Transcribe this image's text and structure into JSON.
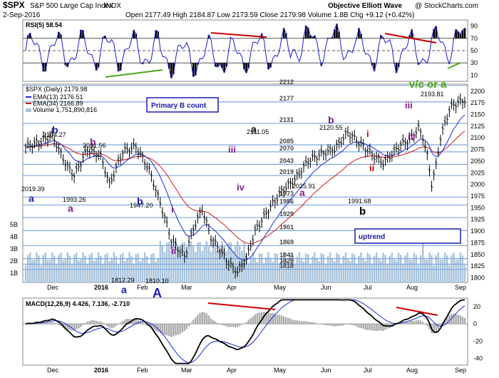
{
  "header": {
    "symbol": "$SPX",
    "name": "S&P 500 Large Cap Index",
    "exchange": "INDX",
    "date": "2-Sep-2016",
    "ohlc": "Open 2177.49  High 2184.87  Low 2173.59  Close 2179.98  Volume 1.8B  Chg +9.12 (+0.42%)",
    "source": "Objective Elliott Wave",
    "watermark": "@ StockCharts.com"
  },
  "x_axis": {
    "labels": [
      "Dec",
      "2016",
      "Feb",
      "Mar",
      "Apr",
      "May",
      "Jun",
      "Jul",
      "Aug",
      "Sep"
    ]
  },
  "rsi": {
    "label": "RSI(5) 58.54",
    "ticks": [
      "90",
      "70",
      "50",
      "30",
      "10"
    ],
    "levels": [
      70,
      50,
      30
    ]
  },
  "price": {
    "legend": {
      "symbol": "$SPX (Daily) 2179.98",
      "ema13": "EMA(13) 2176.51",
      "ema34": "EMA(34) 2166.89",
      "volume": "Volume 1,751,890,816"
    },
    "ticks": [
      "2200",
      "2175",
      "2150",
      "2125",
      "2100",
      "2075",
      "2050",
      "2025",
      "2000",
      "1975",
      "1950",
      "1925",
      "1900",
      "1875",
      "1850",
      "1825",
      "1800"
    ],
    "volume_ticks": [
      "5B",
      "4B",
      "3B",
      "2B",
      "1B"
    ],
    "fib_levels": [
      "2212",
      "2177",
      "2131",
      "2085",
      "2070",
      "2043",
      "2019",
      "1973",
      "1956",
      "1929",
      "1901",
      "1869",
      "1841",
      "1829",
      "1818"
    ],
    "price_labels": [
      "2104.27",
      "2081.56",
      "2019.39",
      "1993.26",
      "1947.20",
      "1812.29",
      "1810.10",
      "2111.05",
      "2025.91",
      "2120.55",
      "1991.68",
      "2193.81"
    ],
    "wave_labels": {
      "blue": [
        "b",
        "a",
        "b",
        "a",
        "A"
      ],
      "purple": [
        "b",
        "a",
        "i",
        "ii",
        "iii",
        "iv",
        "a",
        "b",
        "iii",
        "iv"
      ],
      "red": [
        "i",
        "ii"
      ],
      "black": [
        "a",
        "b"
      ],
      "green": "v/c or a"
    },
    "primary_box": "Primary B count",
    "uptrend_box": "uptrend"
  },
  "macd": {
    "label": "MACD(12,26,9) 4.426, 7.136, -2.710",
    "ticks": [
      "20",
      "0",
      "-20",
      "-40"
    ]
  },
  "colors": {
    "close": "#000000",
    "ema13": "#1a2bd9",
    "ema34": "#d41a1a",
    "fib": "#7aa7dd",
    "volume": "#a9c4dc",
    "rsi": "#1a1acc",
    "wave_blue": "#1a1ab0",
    "wave_purple": "#8a1a8a",
    "wave_red": "#cc0000",
    "wave_green": "#4ca81a"
  },
  "chart_data": [
    {
      "type": "line",
      "title": "$SPX (Daily) 2179.98",
      "x": [
        "Dec",
        "2016",
        "Feb",
        "Mar",
        "Apr",
        "May",
        "Jun",
        "Jul",
        "Aug",
        "Sep"
      ],
      "series": [
        {
          "name": "$SPX (Daily) 2179.98",
          "values": [
            2090,
            2042,
            1885,
            1975,
            2067,
            2068,
            2100,
            2098,
            2170,
            2180
          ]
        },
        {
          "name": "EMA(13) 2176.51",
          "values": [
            2080,
            2045,
            1900,
            1960,
            2055,
            2064,
            2090,
            2095,
            2160,
            2176.51
          ]
        },
        {
          "name": "EMA(34) 2166.89",
          "values": [
            2075,
            2055,
            1940,
            1935,
            2030,
            2055,
            2075,
            2080,
            2130,
            2166.89
          ]
        }
      ],
      "ylim": [
        1790,
        2215
      ]
    },
    {
      "type": "line",
      "title": "RSI(5) 58.54",
      "series": [
        {
          "name": "RSI(5) 58.54",
          "values": [
            55,
            42,
            28,
            62,
            80,
            47,
            62,
            40,
            82,
            58.54
          ]
        }
      ],
      "ylim": [
        0,
        100
      ]
    },
    {
      "type": "line",
      "title": "MACD(12,26,9) 4.426, 7.136, -2.710",
      "series": [
        {
          "values": [
            15,
            2,
            -42,
            -5,
            28,
            8,
            12,
            -18,
            24,
            4.426
          ]
        }
      ],
      "ylim": [
        -48,
        30
      ]
    }
  ]
}
